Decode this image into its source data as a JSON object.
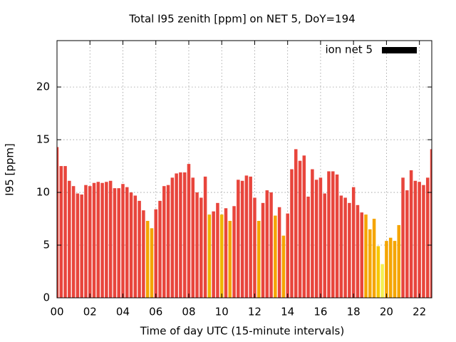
{
  "chart_data": {
    "type": "bar",
    "title": "Total I95 zenith [ppm] on NET 5, DoY=194",
    "xlabel": "Time of day UTC (15-minute intervals)",
    "ylabel": "I95 [ppm]",
    "legend": "ion net 5",
    "legend_color": "#000000",
    "legend_position": "upper right",
    "x": [
      0,
      0.25,
      0.5,
      0.75,
      1,
      1.25,
      1.5,
      1.75,
      2,
      2.25,
      2.5,
      2.75,
      3,
      3.25,
      3.5,
      3.75,
      4,
      4.25,
      4.5,
      4.75,
      5,
      5.25,
      5.5,
      5.75,
      6,
      6.25,
      6.5,
      6.75,
      7,
      7.25,
      7.5,
      7.75,
      8,
      8.25,
      8.5,
      8.75,
      9,
      9.25,
      9.5,
      9.75,
      10,
      10.25,
      10.5,
      10.75,
      11,
      11.25,
      11.5,
      11.75,
      12,
      12.25,
      12.5,
      12.75,
      13,
      13.25,
      13.5,
      13.75,
      14,
      14.25,
      14.5,
      14.75,
      15,
      15.25,
      15.5,
      15.75,
      16,
      16.25,
      16.5,
      16.75,
      17,
      17.25,
      17.5,
      17.75,
      18,
      18.25,
      18.5,
      18.75,
      19,
      19.25,
      19.5,
      19.75,
      20,
      20.25,
      20.5,
      20.75,
      21,
      21.25,
      21.5,
      21.75,
      22,
      22.25,
      22.5,
      22.75
    ],
    "values": [
      14.3,
      12.5,
      12.5,
      11.1,
      10.6,
      9.9,
      9.8,
      10.7,
      10.6,
      10.9,
      11.0,
      10.9,
      11.0,
      11.1,
      10.4,
      10.4,
      10.8,
      10.5,
      10.0,
      9.7,
      9.2,
      8.3,
      7.3,
      6.6,
      8.4,
      9.2,
      10.6,
      10.7,
      11.4,
      11.8,
      11.9,
      11.9,
      12.7,
      11.4,
      10.0,
      9.5,
      11.5,
      7.9,
      8.2,
      9.0,
      7.9,
      8.5,
      7.3,
      8.7,
      11.2,
      11.1,
      11.6,
      11.5,
      9.5,
      7.3,
      9.0,
      10.2,
      10.0,
      7.8,
      8.6,
      5.9,
      8.0,
      12.2,
      14.1,
      13.0,
      13.5,
      9.6,
      12.2,
      11.2,
      11.4,
      9.9,
      12.0,
      12.0,
      11.7,
      9.7,
      9.5,
      9.0,
      10.5,
      8.8,
      8.1,
      7.9,
      6.5,
      7.5,
      4.9,
      3.2,
      5.4,
      5.7,
      5.4,
      6.9,
      11.4,
      10.2,
      12.1,
      11.1,
      11.0,
      10.7,
      11.4,
      14.1
    ],
    "colors": [
      "#e8453c",
      "#e8453c",
      "#e8453c",
      "#e8453c",
      "#e8453c",
      "#e8453c",
      "#e8453c",
      "#e8453c",
      "#e8453c",
      "#e8453c",
      "#e8453c",
      "#e8453c",
      "#e8453c",
      "#e8453c",
      "#e8453c",
      "#e8453c",
      "#e8453c",
      "#e8453c",
      "#e8453c",
      "#e8453c",
      "#e8453c",
      "#e8453c",
      "#f5a500",
      "#f5a500",
      "#e8453c",
      "#e8453c",
      "#e8453c",
      "#e8453c",
      "#e8453c",
      "#e8453c",
      "#e8453c",
      "#e8453c",
      "#e8453c",
      "#e8453c",
      "#e8453c",
      "#e8453c",
      "#e8453c",
      "#f0b400",
      "#e8453c",
      "#e8453c",
      "#f0b400",
      "#e8453c",
      "#f5a500",
      "#e8453c",
      "#e8453c",
      "#e8453c",
      "#e8453c",
      "#e8453c",
      "#e8453c",
      "#f5a500",
      "#e8453c",
      "#e8453c",
      "#e8453c",
      "#f5a500",
      "#e8453c",
      "#f5a500",
      "#e8453c",
      "#e8453c",
      "#e8453c",
      "#e8453c",
      "#e8453c",
      "#e8453c",
      "#e8453c",
      "#e8453c",
      "#e8453c",
      "#e8453c",
      "#e8453c",
      "#e8453c",
      "#e8453c",
      "#e8453c",
      "#e8453c",
      "#e8453c",
      "#e8453c",
      "#e8453c",
      "#e8453c",
      "#f5a500",
      "#f5a500",
      "#f5a500",
      "#f7c800",
      "#f5f050",
      "#f5a500",
      "#f5a500",
      "#f5a500",
      "#f5a500",
      "#e8453c",
      "#e8453c",
      "#e8453c",
      "#e8453c",
      "#e8453c",
      "#e8453c",
      "#e8453c",
      "#e8453c"
    ],
    "xlim": [
      0,
      22.75
    ],
    "xticks": [
      {
        "value": 0,
        "label": "00"
      },
      {
        "value": 2,
        "label": "02"
      },
      {
        "value": 4,
        "label": "04"
      },
      {
        "value": 6,
        "label": "06"
      },
      {
        "value": 8,
        "label": "08"
      },
      {
        "value": 10,
        "label": "10"
      },
      {
        "value": 12,
        "label": "12"
      },
      {
        "value": 14,
        "label": "14"
      },
      {
        "value": 16,
        "label": "16"
      },
      {
        "value": 18,
        "label": "18"
      },
      {
        "value": 20,
        "label": "20"
      },
      {
        "value": 22,
        "label": "22"
      }
    ],
    "ylim": [
      0,
      24.4
    ],
    "yticks": [
      0,
      5,
      10,
      15,
      20
    ],
    "grid": true
  }
}
